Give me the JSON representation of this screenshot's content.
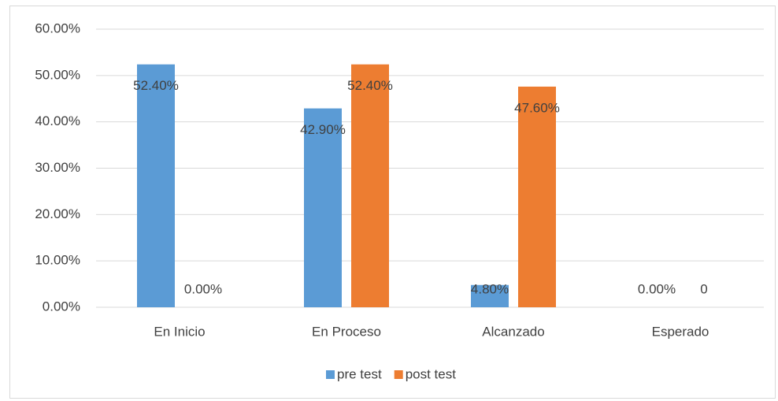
{
  "chart_data": {
    "type": "bar",
    "categories": [
      "En Inicio",
      "En Proceso",
      "Alcanzado",
      "Esperado"
    ],
    "series": [
      {
        "name": "pre test",
        "color": "#5b9bd5",
        "values": [
          52.4,
          42.9,
          4.8,
          0
        ],
        "value_labels": [
          "52.40%",
          "42.90%",
          "4.80%",
          "0.00%"
        ]
      },
      {
        "name": "post test",
        "color": "#ed7d31",
        "values": [
          0,
          52.4,
          47.6,
          0
        ],
        "value_labels": [
          "0.00%",
          "52.40%",
          "47.60%",
          "0"
        ]
      }
    ],
    "ylim": [
      0,
      60
    ],
    "yticks": [
      {
        "value": 0,
        "label": "0.00%"
      },
      {
        "value": 10,
        "label": "10.00%"
      },
      {
        "value": 20,
        "label": "20.00%"
      },
      {
        "value": 30,
        "label": "30.00%"
      },
      {
        "value": 40,
        "label": "40.00%"
      },
      {
        "value": 50,
        "label": "50.00%"
      },
      {
        "value": 60,
        "label": "60.00%"
      }
    ],
    "grid": true,
    "legend": "bottom"
  }
}
